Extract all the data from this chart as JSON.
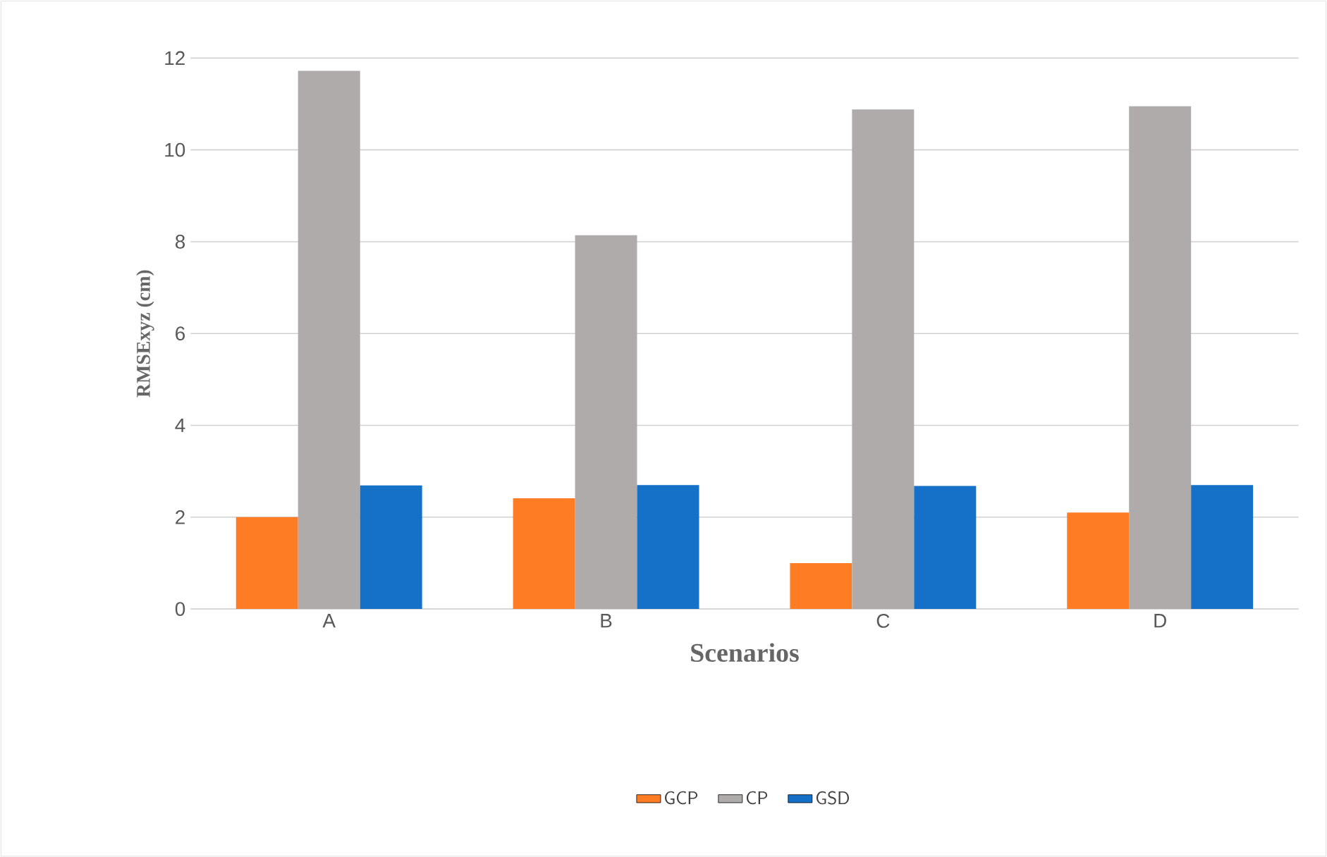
{
  "chart_data": {
    "type": "bar",
    "xlabel": "Scenarios",
    "ylabel": "RMSExyz (cm)",
    "categories": [
      "A",
      "B",
      "C",
      "D"
    ],
    "series": [
      {
        "name": "GCP",
        "color": "#fe7c23",
        "values": [
          2.0,
          2.41,
          1.0,
          2.1
        ]
      },
      {
        "name": "CP",
        "color": "#afabaa",
        "values": [
          11.72,
          8.14,
          10.88,
          10.95
        ]
      },
      {
        "name": "GSD",
        "color": "#1570c7",
        "values": [
          2.69,
          2.7,
          2.68,
          2.7
        ]
      }
    ],
    "ylim": [
      0,
      12
    ],
    "yticks": [
      0,
      2,
      4,
      6,
      8,
      10,
      12
    ],
    "grid": "y",
    "legend": "bottom"
  }
}
